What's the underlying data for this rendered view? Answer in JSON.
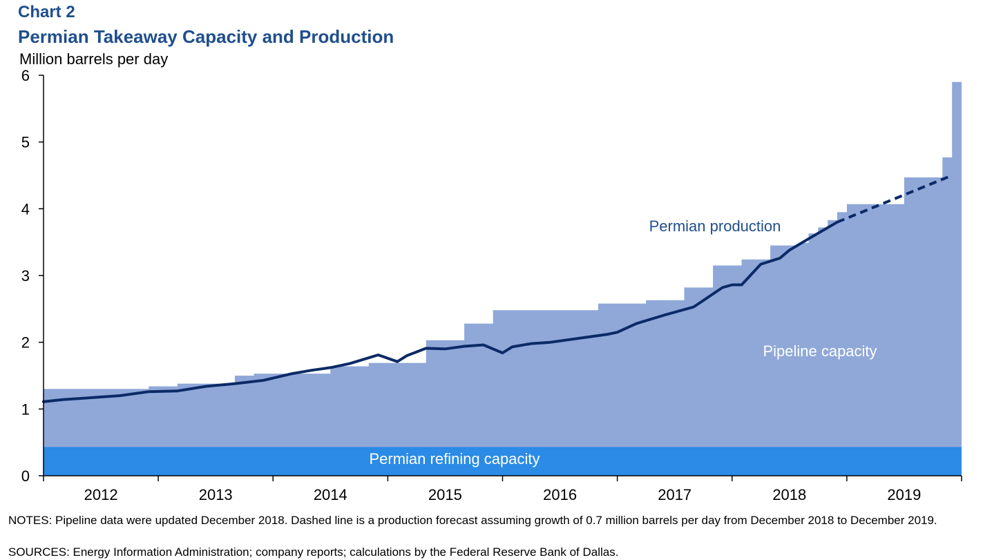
{
  "header": {
    "chart_label": "Chart 2",
    "title": "Permian Takeaway Capacity and Production",
    "y_unit": "Million barrels per day"
  },
  "footer": {
    "notes": "NOTES: Pipeline data were updated December 2018. Dashed line is a production forecast assuming growth of 0.7 million barrels per day from December 2018 to December  2019.",
    "sources": "SOURCES: Energy Information Administration; company reports; calculations by the Federal Reserve Bank of Dallas."
  },
  "chart_data": {
    "type": "area",
    "title": "Permian Takeaway Capacity and Production",
    "ylabel": "Million barrels per day",
    "ylim": [
      0,
      6
    ],
    "y_ticks": [
      0,
      1,
      2,
      3,
      4,
      5,
      6
    ],
    "y_tick_labels": [
      "0",
      "1",
      "2",
      "3",
      "4",
      "5",
      "6"
    ],
    "x_start": "2012-01",
    "x_end": "2019-12",
    "categories": [
      "2012",
      "2013",
      "2014",
      "2015",
      "2016",
      "2017",
      "2018",
      "2019"
    ],
    "grid": false,
    "colors": {
      "refining": "#2b8be6",
      "pipeline": "#8fa8d8",
      "production": "#0b2a66"
    },
    "series": [
      {
        "name": "Permian refining capacity",
        "type": "area",
        "value": 0.43
      },
      {
        "name": "Pipeline capacity",
        "type": "step-area",
        "x": [
          "2012-01",
          "2012-12",
          "2013-03",
          "2013-09",
          "2013-11",
          "2014-07",
          "2014-11",
          "2015-05",
          "2015-09",
          "2015-12",
          "2016-04",
          "2016-11",
          "2017-04",
          "2017-08",
          "2017-11",
          "2018-02",
          "2018-05",
          "2018-08",
          "2018-09",
          "2018-10",
          "2018-11",
          "2018-12",
          "2019-01",
          "2019-06",
          "2019-07",
          "2019-11",
          "2019-12"
        ],
        "values": [
          1.3,
          1.34,
          1.38,
          1.5,
          1.53,
          1.64,
          1.69,
          2.03,
          2.28,
          2.48,
          2.48,
          2.58,
          2.63,
          2.82,
          3.15,
          3.24,
          3.45,
          3.49,
          3.63,
          3.72,
          3.83,
          3.95,
          4.07,
          4.07,
          4.47,
          4.77,
          5.9
        ]
      },
      {
        "name": "Permian production",
        "type": "line",
        "x": [
          "2012-01",
          "2012-03",
          "2012-06",
          "2012-09",
          "2012-12",
          "2013-03",
          "2013-06",
          "2013-09",
          "2013-12",
          "2014-03",
          "2014-05",
          "2014-07",
          "2014-09",
          "2014-12",
          "2015-02",
          "2015-03",
          "2015-05",
          "2015-07",
          "2015-09",
          "2015-11",
          "2016-01",
          "2016-02",
          "2016-04",
          "2016-06",
          "2016-09",
          "2016-12",
          "2017-01",
          "2017-03",
          "2017-06",
          "2017-09",
          "2017-12",
          "2018-01",
          "2018-02",
          "2018-04",
          "2018-06",
          "2018-07",
          "2018-09",
          "2018-12"
        ],
        "values": [
          1.11,
          1.14,
          1.17,
          1.2,
          1.26,
          1.27,
          1.34,
          1.38,
          1.43,
          1.53,
          1.58,
          1.62,
          1.68,
          1.81,
          1.71,
          1.8,
          1.91,
          1.9,
          1.94,
          1.96,
          1.84,
          1.93,
          1.98,
          2.0,
          2.06,
          2.12,
          2.15,
          2.28,
          2.41,
          2.53,
          2.82,
          2.86,
          2.86,
          3.17,
          3.26,
          3.38,
          3.55,
          3.8
        ]
      },
      {
        "name": "Production forecast",
        "type": "dashed-line",
        "x": [
          "2018-12",
          "2019-12"
        ],
        "values": [
          3.8,
          4.5
        ]
      }
    ],
    "annotations": [
      {
        "text": "Permian production",
        "color": "#1f4e8c"
      },
      {
        "text": "Pipeline capacity",
        "color": "#ffffff"
      },
      {
        "text": "Permian refining capacity",
        "color": "#ffffff"
      }
    ]
  }
}
